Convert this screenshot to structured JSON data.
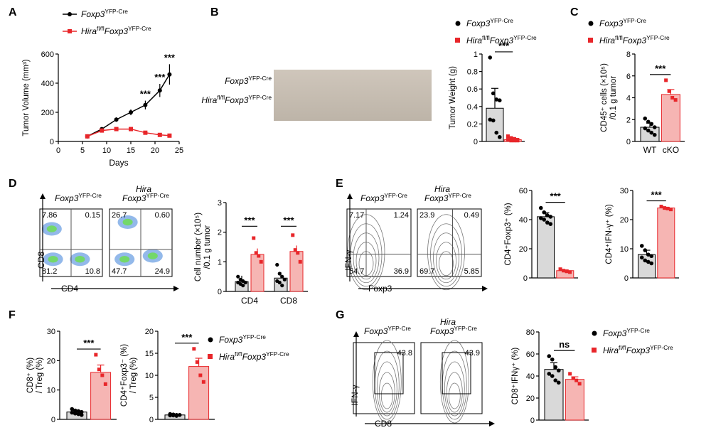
{
  "colors": {
    "wt": "#000000",
    "ko": "#e8262a",
    "ko_bar": "#f6b5b3",
    "wt_bar": "#d9d9d9"
  },
  "legend": {
    "wt_gene": "Foxp3",
    "wt_sup": "YFP-Cre",
    "ko_gene": "Hira",
    "ko_sup1": "fl/fl",
    "ko_gene2": "Foxp3",
    "ko_sup2": "YFP-Cre",
    "wt_short": "WT",
    "ko_short": "cKO"
  },
  "panels": {
    "A": "A",
    "B": "B",
    "C": "C",
    "D": "D",
    "E": "E",
    "F": "F",
    "G": "G"
  },
  "stars": "***",
  "ns": "ns",
  "chart_data": [
    {
      "id": "A",
      "type": "line",
      "xlabel": "Days",
      "ylabel": "Tumor Volume (mm³)",
      "xlim": [
        0,
        25
      ],
      "ylim": [
        0,
        600
      ],
      "xticks": [
        0,
        5,
        10,
        15,
        20,
        25
      ],
      "yticks": [
        0,
        200,
        400,
        600
      ],
      "series": [
        {
          "name": "Foxp3 YFP-Cre",
          "x": [
            6,
            9,
            12,
            15,
            18,
            21,
            23
          ],
          "y": [
            35,
            85,
            150,
            200,
            250,
            350,
            460
          ],
          "err": [
            5,
            10,
            15,
            20,
            30,
            45,
            70
          ]
        },
        {
          "name": "Hira fl/fl Foxp3 YFP-Cre",
          "x": [
            6,
            9,
            12,
            15,
            18,
            21,
            23
          ],
          "y": [
            35,
            75,
            85,
            85,
            60,
            45,
            40
          ],
          "err": [
            5,
            8,
            8,
            8,
            6,
            5,
            5
          ]
        }
      ],
      "annotations": [
        {
          "x": 18,
          "text": "***"
        },
        {
          "x": 21,
          "text": "***"
        },
        {
          "x": 23,
          "text": "***"
        }
      ]
    },
    {
      "id": "B",
      "type": "bar",
      "ylabel": "Tumor Weight (g)",
      "ylim": [
        0,
        1.0
      ],
      "yticks": [
        0,
        0.2,
        0.4,
        0.6,
        0.8,
        1.0
      ],
      "values": [
        0.38,
        0.02
      ],
      "points": [
        [
          0.96,
          0.55,
          0.48,
          0.47,
          0.25,
          0.24,
          0.1,
          0.05
        ],
        [
          0.06,
          0.04,
          0.03,
          0.02,
          0.02,
          0.01,
          0.01,
          0.01
        ]
      ],
      "photo_rows": [
        "Foxp3 YFP-Cre",
        "Hira fl/fl Foxp3 YFP-Cre"
      ]
    },
    {
      "id": "C",
      "type": "bar",
      "ylabel": "CD45⁺ cells (×10⁵) /0.1 g tumor",
      "ylim": [
        0,
        8
      ],
      "yticks": [
        0,
        2,
        4,
        6,
        8
      ],
      "categories": [
        "WT",
        "cKO"
      ],
      "values": [
        1.3,
        4.3
      ],
      "points": [
        [
          2.1,
          1.8,
          1.6,
          1.3,
          1.2,
          1.0,
          0.8,
          0.6
        ],
        [
          5.6,
          4.6,
          4.0,
          3.8
        ]
      ]
    },
    {
      "id": "D-flow",
      "type": "scatter",
      "xlabel": "CD4",
      "ylabel": "CD8",
      "quadrants": [
        [
          "7.86",
          "0.15",
          "81.2",
          "10.8"
        ],
        [
          "26.7",
          "0.60",
          "47.7",
          "24.9"
        ]
      ]
    },
    {
      "id": "D-bar",
      "type": "bar",
      "ylabel": "Cell number (×10⁵) /0.1 g tumor",
      "ylim": [
        0,
        3
      ],
      "yticks": [
        0,
        1,
        2,
        3
      ],
      "categories": [
        "CD4",
        "CD8"
      ],
      "series": [
        {
          "name": "Foxp3 YFP-Cre",
          "values": [
            0.33,
            0.45
          ]
        },
        {
          "name": "Hira fl/fl Foxp3 YFP-Cre",
          "values": [
            1.25,
            1.35
          ]
        }
      ],
      "points": [
        [
          [
            0.5,
            0.4,
            0.35,
            0.3,
            0.3,
            0.25,
            0.2
          ],
          [
            0.9,
            0.6,
            0.5,
            0.4,
            0.35,
            0.3,
            0.2
          ]
        ],
        [
          [
            1.8,
            1.3,
            1.2,
            1.0
          ],
          [
            1.9,
            1.4,
            1.3,
            1.0
          ]
        ]
      ]
    },
    {
      "id": "E-flow",
      "type": "scatter",
      "xlabel": "Foxp3",
      "ylabel": "IFN-γ",
      "quadrants": [
        [
          "7.17",
          "1.24",
          "54.7",
          "36.9"
        ],
        [
          "23.9",
          "0.49",
          "69.7",
          "5.85"
        ]
      ]
    },
    {
      "id": "E-bar1",
      "type": "bar",
      "ylabel": "CD4⁺Foxp3⁺ (%)",
      "ylim": [
        0,
        60
      ],
      "yticks": [
        0,
        20,
        40,
        60
      ],
      "values": [
        42,
        5
      ],
      "points": [
        [
          48,
          45,
          43,
          42,
          41,
          40,
          38,
          37
        ],
        [
          6,
          5,
          4.5,
          4
        ]
      ]
    },
    {
      "id": "E-bar2",
      "type": "bar",
      "ylabel": "CD4⁺IFN-γ⁺ (%)",
      "ylim": [
        0,
        30
      ],
      "yticks": [
        0,
        10,
        20,
        30
      ],
      "values": [
        8,
        24
      ],
      "points": [
        [
          11,
          9.5,
          8,
          7.5,
          7,
          6,
          5.5,
          5
        ],
        [
          24.5,
          24,
          23.8,
          23.5
        ]
      ]
    },
    {
      "id": "F-bar1",
      "type": "bar",
      "ylabel": "CD8⁺ (%) / Treg (%)",
      "ylim": [
        0,
        30
      ],
      "yticks": [
        0,
        10,
        20,
        30
      ],
      "values": [
        2.5,
        16
      ],
      "points": [
        [
          3.5,
          3,
          2.8,
          2.5,
          2.3,
          2,
          1.8,
          1.5
        ],
        [
          22,
          17,
          15,
          12
        ]
      ]
    },
    {
      "id": "F-bar2",
      "type": "bar",
      "ylabel": "CD4⁺Foxp3⁻ (%) / Treg (%)",
      "ylim": [
        0,
        20
      ],
      "yticks": [
        0,
        5,
        10,
        15,
        20
      ],
      "values": [
        1.0,
        12
      ],
      "points": [
        [
          1.2,
          1.1,
          1.0,
          1.0,
          0.9,
          0.9,
          0.8
        ],
        [
          16,
          13,
          10,
          8.5
        ]
      ]
    },
    {
      "id": "G-flow",
      "type": "scatter",
      "xlabel": "CD8",
      "ylabel": "IFN-γ",
      "gates": [
        "43.8",
        "43.9"
      ]
    },
    {
      "id": "G-bar",
      "type": "bar",
      "ylabel": "CD8⁺IFNγ⁺ (%)",
      "ylim": [
        0,
        80
      ],
      "yticks": [
        0,
        20,
        40,
        60,
        80
      ],
      "values": [
        46,
        37
      ],
      "points": [
        [
          58,
          55,
          48,
          45,
          42,
          40,
          36,
          34
        ],
        [
          42,
          38,
          36,
          33
        ]
      ]
    }
  ]
}
